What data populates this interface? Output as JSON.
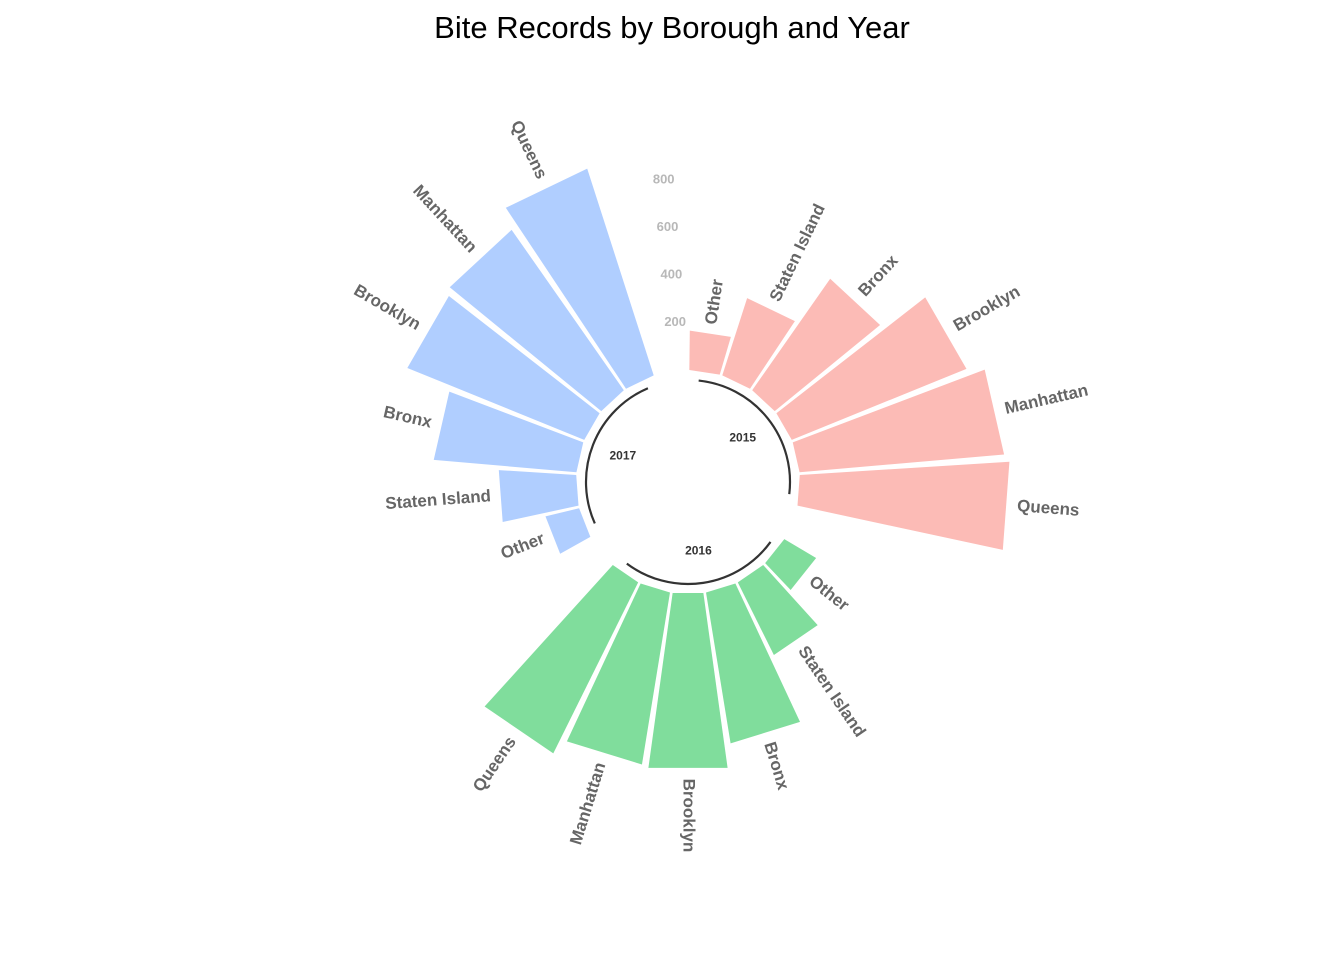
{
  "chart_data": {
    "type": "bar",
    "subtype": "circular-grouped",
    "title": "Bite Records by Borough and Year",
    "xlabel": "",
    "ylabel": "",
    "ylim": [
      -400,
      1000
    ],
    "radial_ticks": [
      200,
      400,
      600,
      800
    ],
    "grid": false,
    "legend": "none",
    "groups": [
      {
        "name": "2015",
        "color": "#f8766d",
        "categories": [
          "Other",
          "Staten Island",
          "Bronx",
          "Brooklyn",
          "Manhattan",
          "Queens"
        ],
        "values": [
          165,
          340,
          570,
          790,
          860,
          880
        ]
      },
      {
        "name": "2016",
        "color": "#00ba38",
        "categories": [
          "Other",
          "Staten Island",
          "Bronx",
          "Brooklyn",
          "Manhattan",
          "Queens"
        ],
        "values": [
          155,
          340,
          640,
          740,
          730,
          800
        ]
      },
      {
        "name": "2017",
        "color": "#619cff",
        "categories": [
          "Other",
          "Staten Island",
          "Bronx",
          "Brooklyn",
          "Manhattan",
          "Queens"
        ],
        "values": [
          145,
          325,
          600,
          800,
          820,
          910
        ]
      }
    ]
  }
}
